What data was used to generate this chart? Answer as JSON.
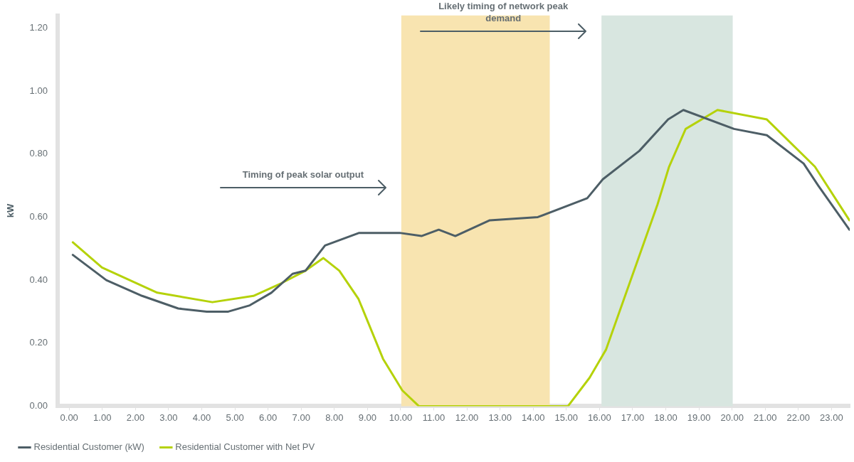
{
  "chart_data": {
    "type": "line",
    "ylabel": "kW",
    "xlim": [
      -0.35,
      23.55
    ],
    "ylim": [
      0,
      1.24
    ],
    "xticks": [
      {
        "value": 0,
        "label": "0.00"
      },
      {
        "value": 1,
        "label": "1.00"
      },
      {
        "value": 2,
        "label": "2.00"
      },
      {
        "value": 3,
        "label": "3.00"
      },
      {
        "value": 4,
        "label": "4.00"
      },
      {
        "value": 5,
        "label": "5.00"
      },
      {
        "value": 6,
        "label": "6.00"
      },
      {
        "value": 7,
        "label": "7.00"
      },
      {
        "value": 8,
        "label": "8.00"
      },
      {
        "value": 9,
        "label": "9.00"
      },
      {
        "value": 10,
        "label": "10.00"
      },
      {
        "value": 11,
        "label": "11.00"
      },
      {
        "value": 12,
        "label": "12.00"
      },
      {
        "value": 13,
        "label": "13.00"
      },
      {
        "value": 14,
        "label": "14.00"
      },
      {
        "value": 15,
        "label": "15.00"
      },
      {
        "value": 16,
        "label": "16.00"
      },
      {
        "value": 17,
        "label": "17.00"
      },
      {
        "value": 18,
        "label": "18.00"
      },
      {
        "value": 19,
        "label": "19.00"
      },
      {
        "value": 20,
        "label": "20.00"
      },
      {
        "value": 21,
        "label": "21.00"
      },
      {
        "value": 22,
        "label": "22.00"
      },
      {
        "value": 23,
        "label": "23.00"
      }
    ],
    "yticks": [
      {
        "value": 0,
        "label": "0.00"
      },
      {
        "value": 0.2,
        "label": "0.20"
      },
      {
        "value": 0.4,
        "label": "0.40"
      },
      {
        "value": 0.6,
        "label": "0.60"
      },
      {
        "value": 0.8,
        "label": "0.80"
      },
      {
        "value": 1,
        "label": "1.00"
      },
      {
        "value": 1.2,
        "label": "1.20"
      }
    ],
    "grid": false,
    "legend": "bottom",
    "marker": "none",
    "line_style": "solid",
    "series": [
      {
        "name": "Residential Customer (kW)",
        "color": "#4d5e66",
        "x": [
          0.11,
          1.12,
          2.2,
          3.29,
          4.15,
          4.8,
          5.45,
          6.1,
          6.74,
          7.13,
          7.72,
          8.75,
          9.97,
          10.63,
          11.15,
          11.65,
          12.69,
          14.14,
          15.63,
          16.1,
          17.2,
          18.07,
          18.53,
          20.06,
          21.05,
          22.16,
          22.6,
          23.54
        ],
        "values": [
          0.48,
          0.4,
          0.35,
          0.31,
          0.3,
          0.3,
          0.32,
          0.36,
          0.42,
          0.43,
          0.51,
          0.55,
          0.55,
          0.54,
          0.56,
          0.54,
          0.59,
          0.6,
          0.66,
          0.72,
          0.81,
          0.91,
          0.94,
          0.88,
          0.86,
          0.77,
          0.7,
          0.56
        ]
      },
      {
        "name": "Residential Customer with Net PV",
        "color": "#b5d20a",
        "x": [
          0.11,
          0.99,
          2.66,
          4.32,
          5.56,
          6.4,
          7.13,
          7.67,
          8.15,
          8.73,
          9.47,
          10.05,
          10.55,
          15.05,
          15.7,
          16.2,
          17.75,
          18.1,
          18.6,
          19.56,
          21.05,
          22.5,
          23.54
        ],
        "values": [
          0.52,
          0.44,
          0.36,
          0.33,
          0.35,
          0.39,
          0.43,
          0.47,
          0.43,
          0.34,
          0.15,
          0.05,
          0,
          0,
          0.09,
          0.18,
          0.64,
          0.76,
          0.88,
          0.94,
          0.91,
          0.76,
          0.59
        ]
      }
    ],
    "bands": [
      {
        "axis": "x",
        "from": 10.02,
        "to": 14.5,
        "color": "#f8e4b0"
      },
      {
        "axis": "x",
        "from": 16.06,
        "to": 20.02,
        "color": "#d8e6e0"
      }
    ],
    "annotations": [
      "Timing of peak solar output",
      "Likely timing of network peak demand"
    ]
  }
}
